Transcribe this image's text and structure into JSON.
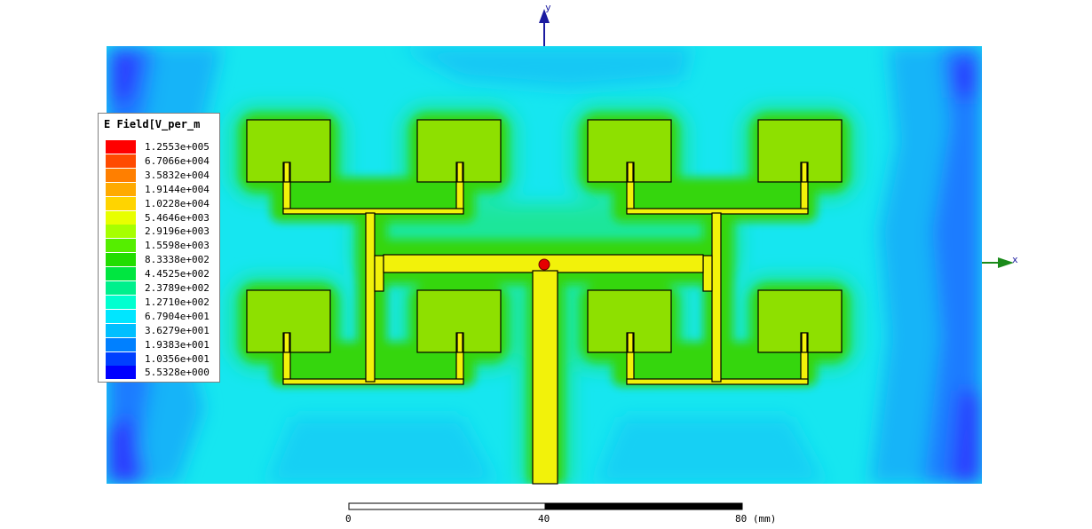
{
  "legend": {
    "title": "E Field[V_per_m",
    "entries": [
      {
        "value": "1.2553e+005",
        "color": "#ff0000"
      },
      {
        "value": "6.7066e+004",
        "color": "#ff4a00"
      },
      {
        "value": "3.5832e+004",
        "color": "#ff7f00"
      },
      {
        "value": "1.9144e+004",
        "color": "#ffaa00"
      },
      {
        "value": "1.0228e+004",
        "color": "#ffd400"
      },
      {
        "value": "5.4646e+003",
        "color": "#e8ff00"
      },
      {
        "value": "2.9196e+003",
        "color": "#a6ff00"
      },
      {
        "value": "1.5598e+003",
        "color": "#55ee00"
      },
      {
        "value": "8.3338e+002",
        "color": "#22dd00"
      },
      {
        "value": "4.4525e+002",
        "color": "#00e640"
      },
      {
        "value": "2.3789e+002",
        "color": "#00f08c"
      },
      {
        "value": "1.2710e+002",
        "color": "#00ffd0"
      },
      {
        "value": "6.7904e+001",
        "color": "#00e6ff"
      },
      {
        "value": "3.6279e+001",
        "color": "#00bfff"
      },
      {
        "value": "1.9383e+001",
        "color": "#0080ff"
      },
      {
        "value": "1.0356e+001",
        "color": "#0040ff"
      },
      {
        "value": "5.5328e+000",
        "color": "#0000ff"
      }
    ]
  },
  "scale_bar": {
    "ticks": [
      "0",
      "40",
      "80 (mm)"
    ]
  },
  "axes": {
    "x_label": "x",
    "y_label": "y"
  },
  "colors": {
    "background_field": "#16e6f0",
    "edge_field": "#1a8aff",
    "patch_field": "#39d40c",
    "feed_line": "#f2f20a",
    "conductor_outline": "#000000",
    "axis_color": "#1a1aa0",
    "x_axis_arrow": "#1a8a1a"
  }
}
